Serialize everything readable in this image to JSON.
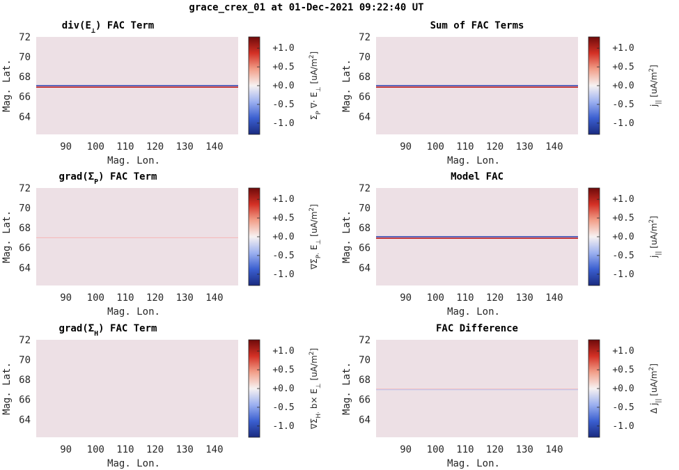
{
  "figure_title": "grace_crex_01 at 01-Dec-2021 09:22:40 UT",
  "colors": {
    "background_fill": "#ede0e5",
    "colormap": [
      "#1a2b80",
      "#3b5fd0",
      "#9cb0f0",
      "#f7f2f2",
      "#f2a08a",
      "#d33025",
      "#6e0a0a"
    ],
    "line_blue": "#2a3fb0",
    "line_red": "#c02020",
    "line_faint_red": "#f4b6b6",
    "line_faint_blue": "#b8c4f4"
  },
  "chart_data": [
    {
      "type": "heatmap",
      "title_parts": [
        "div(E",
        "⊥",
        ") FAC Term"
      ],
      "xlabel": "Mag. Lon.",
      "ylabel": "Mag. Lat.",
      "xlim": [
        80,
        148
      ],
      "ylim": [
        62.2,
        72
      ],
      "xticks": [
        90,
        100,
        110,
        120,
        130,
        140
      ],
      "yticks": [
        64,
        66,
        68,
        70,
        72
      ],
      "field_value": 0.0,
      "features": [
        {
          "lat": 67.1,
          "value": -1.2
        },
        {
          "lat": 66.95,
          "value": 1.2
        }
      ],
      "colorbar": {
        "clim": [
          -1.3,
          1.3
        ],
        "ticks": [
          "+1.0",
          "+0.5",
          "+0.0",
          "-0.5",
          "-1.0"
        ],
        "tick_values": [
          1.0,
          0.5,
          0.0,
          -0.5,
          -1.0
        ],
        "label": "Σ_P ∇· E_⊥ [uA/m^2]"
      }
    },
    {
      "type": "heatmap",
      "title_parts": [
        "Sum of FAC Terms"
      ],
      "xlabel": "Mag. Lon.",
      "ylabel": "Mag. Lat.",
      "xlim": [
        80,
        148
      ],
      "ylim": [
        62.2,
        72
      ],
      "xticks": [
        90,
        100,
        110,
        120,
        130,
        140
      ],
      "yticks": [
        64,
        66,
        68,
        70,
        72
      ],
      "field_value": 0.0,
      "features": [
        {
          "lat": 67.1,
          "value": -1.2
        },
        {
          "lat": 66.95,
          "value": 1.2
        }
      ],
      "colorbar": {
        "clim": [
          -1.3,
          1.3
        ],
        "ticks": [
          "+1.0",
          "+0.5",
          "+0.0",
          "-0.5",
          "-1.0"
        ],
        "tick_values": [
          1.0,
          0.5,
          0.0,
          -0.5,
          -1.0
        ],
        "label": "j_|| [uA/m^2]"
      }
    },
    {
      "type": "heatmap",
      "title_parts": [
        "grad(Σ",
        "P",
        ") FAC Term"
      ],
      "xlabel": "Mag. Lon.",
      "ylabel": "Mag. Lat.",
      "xlim": [
        80,
        148
      ],
      "ylim": [
        62.2,
        72
      ],
      "xticks": [
        90,
        100,
        110,
        120,
        130,
        140
      ],
      "yticks": [
        64,
        66,
        68,
        70,
        72
      ],
      "field_value": 0.0,
      "features": [
        {
          "lat": 67.0,
          "value": 0.25
        }
      ],
      "colorbar": {
        "clim": [
          -1.3,
          1.3
        ],
        "ticks": [
          "+1.0",
          "+0.5",
          "+0.0",
          "-0.5",
          "-1.0"
        ],
        "tick_values": [
          1.0,
          0.5,
          0.0,
          -0.5,
          -1.0
        ],
        "label": "∇Σ_P· E_⊥ [uA/m^2]"
      }
    },
    {
      "type": "heatmap",
      "title_parts": [
        "Model FAC"
      ],
      "xlabel": "Mag. Lon.",
      "ylabel": "Mag. Lat.",
      "xlim": [
        80,
        148
      ],
      "ylim": [
        62.2,
        72
      ],
      "xticks": [
        90,
        100,
        110,
        120,
        130,
        140
      ],
      "yticks": [
        64,
        66,
        68,
        70,
        72
      ],
      "field_value": 0.0,
      "features": [
        {
          "lat": 67.1,
          "value": -1.2
        },
        {
          "lat": 66.95,
          "value": 1.2
        }
      ],
      "colorbar": {
        "clim": [
          -1.3,
          1.3
        ],
        "ticks": [
          "+1.0",
          "+0.5",
          "+0.0",
          "-0.5",
          "-1.0"
        ],
        "tick_values": [
          1.0,
          0.5,
          0.0,
          -0.5,
          -1.0
        ],
        "label": "j_|| [uA/m^2]"
      }
    },
    {
      "type": "heatmap",
      "title_parts": [
        "grad(Σ",
        "H",
        ") FAC Term"
      ],
      "xlabel": "Mag. Lon.",
      "ylabel": "Mag. Lat.",
      "xlim": [
        80,
        148
      ],
      "ylim": [
        62.2,
        72
      ],
      "xticks": [
        90,
        100,
        110,
        120,
        130,
        140
      ],
      "yticks": [
        64,
        66,
        68,
        70,
        72
      ],
      "field_value": 0.0,
      "features": [],
      "colorbar": {
        "clim": [
          -1.3,
          1.3
        ],
        "ticks": [
          "+1.0",
          "+0.5",
          "+0.0",
          "-0.5",
          "-1.0"
        ],
        "tick_values": [
          1.0,
          0.5,
          0.0,
          -0.5,
          -1.0
        ],
        "label": "∇Σ_H· b× E_⊥ [uA/m^2]"
      }
    },
    {
      "type": "heatmap",
      "title_parts": [
        "FAC Difference"
      ],
      "xlabel": "Mag. Lon.",
      "ylabel": "Mag. Lat.",
      "xlim": [
        80,
        148
      ],
      "ylim": [
        62.2,
        72
      ],
      "xticks": [
        90,
        100,
        110,
        120,
        130,
        140
      ],
      "yticks": [
        64,
        66,
        68,
        70,
        72
      ],
      "field_value": 0.0,
      "features": [
        {
          "lat": 67.05,
          "value": 0.25
        },
        {
          "lat": 66.98,
          "value": -0.2
        }
      ],
      "colorbar": {
        "clim": [
          -1.3,
          1.3
        ],
        "ticks": [
          "+1.0",
          "+0.5",
          "+0.0",
          "-0.5",
          "-1.0"
        ],
        "tick_values": [
          1.0,
          0.5,
          0.0,
          -0.5,
          -1.0
        ],
        "label": "Δ j_|| [uA/m^2]"
      }
    }
  ]
}
